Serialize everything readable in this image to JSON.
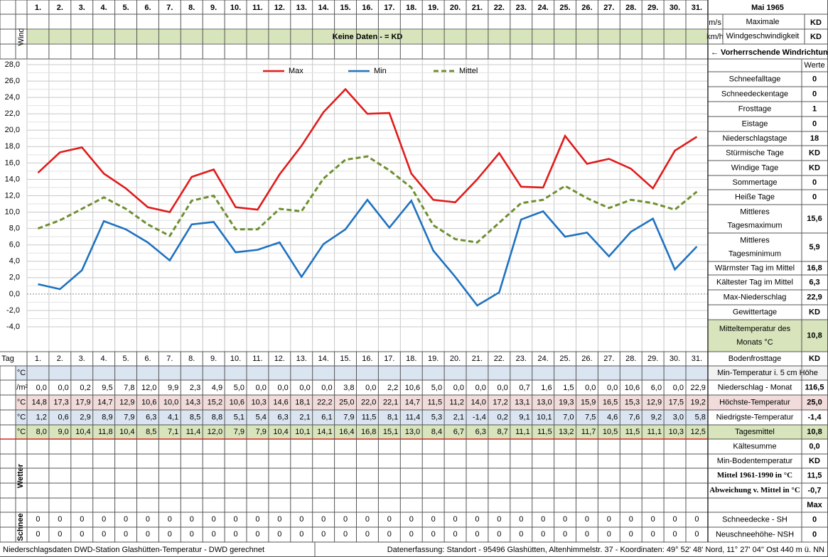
{
  "title": "Mai 1965",
  "wind": {
    "label": "Wind",
    "note": "Keine Daten -  = KD",
    "units": [
      "m/s",
      "km/h"
    ],
    "max_label": [
      "Maximale",
      "Windgeschwindigkeit"
    ],
    "max_values": [
      "KD",
      "KD"
    ],
    "direction": "← Vorherrschende Windrichtung"
  },
  "chart_data": {
    "type": "line",
    "categories": [
      "1.",
      "2.",
      "3.",
      "4.",
      "5.",
      "6.",
      "7.",
      "8.",
      "9.",
      "10.",
      "11.",
      "12.",
      "13.",
      "14.",
      "15.",
      "16.",
      "17.",
      "18.",
      "19.",
      "20.",
      "21.",
      "22.",
      "23.",
      "24.",
      "25.",
      "26.",
      "27.",
      "28.",
      "29.",
      "30.",
      "31."
    ],
    "ylim": [
      -4,
      28
    ],
    "yticks": [
      {
        "value": 28,
        "label": "28,0"
      },
      {
        "value": 26,
        "label": "26,0"
      },
      {
        "value": 24,
        "label": "24,0"
      },
      {
        "value": 22,
        "label": "22,0"
      },
      {
        "value": 20,
        "label": "20,0"
      },
      {
        "value": 18,
        "label": "18,0"
      },
      {
        "value": 16,
        "label": "16,0"
      },
      {
        "value": 14,
        "label": "14,0"
      },
      {
        "value": 12,
        "label": "12,0"
      },
      {
        "value": 10,
        "label": "10,0"
      },
      {
        "value": 8,
        "label": "8,0"
      },
      {
        "value": 6,
        "label": "6,0"
      },
      {
        "value": 4,
        "label": "4,0"
      },
      {
        "value": 2,
        "label": "2,0"
      },
      {
        "value": 0,
        "label": "0,0"
      },
      {
        "value": -2,
        "label": "-2,0"
      },
      {
        "value": -4,
        "label": "-4,0"
      }
    ],
    "grid": true,
    "series": [
      {
        "name": "Max",
        "color": "#e01b1b",
        "dash": false,
        "values": [
          14.8,
          17.3,
          17.9,
          14.7,
          12.9,
          10.6,
          10.0,
          14.3,
          15.2,
          10.6,
          10.3,
          14.6,
          18.1,
          22.2,
          25.0,
          22.0,
          22.1,
          14.7,
          11.5,
          11.2,
          14.0,
          17.2,
          13.1,
          13.0,
          19.3,
          15.9,
          16.5,
          15.3,
          12.9,
          17.5,
          19.2
        ],
        "value_labels": [
          "14,8",
          "17,3",
          "17,9",
          "14,7",
          "12,9",
          "10,6",
          "10,0",
          "14,3",
          "15,2",
          "10,6",
          "10,3",
          "14,6",
          "18,1",
          "22,2",
          "25,0",
          "22,0",
          "22,1",
          "14,7",
          "11,5",
          "11,2",
          "14,0",
          "17,2",
          "13,1",
          "13,0",
          "19,3",
          "15,9",
          "16,5",
          "15,3",
          "12,9",
          "17,5",
          "19,2"
        ]
      },
      {
        "name": "Min",
        "color": "#1f72c0",
        "dash": false,
        "values": [
          1.2,
          0.6,
          2.9,
          8.9,
          7.9,
          6.3,
          4.1,
          8.5,
          8.8,
          5.1,
          5.4,
          6.3,
          2.1,
          6.1,
          7.9,
          11.5,
          8.1,
          11.4,
          5.3,
          2.1,
          -1.4,
          0.2,
          9.1,
          10.1,
          7.0,
          7.5,
          4.6,
          7.6,
          9.2,
          3.0,
          5.8
        ],
        "value_labels": [
          "1,2",
          "0,6",
          "2,9",
          "8,9",
          "7,9",
          "6,3",
          "4,1",
          "8,5",
          "8,8",
          "5,1",
          "5,4",
          "6,3",
          "2,1",
          "6,1",
          "7,9",
          "11,5",
          "8,1",
          "11,4",
          "5,3",
          "2,1",
          "-1,4",
          "0,2",
          "9,1",
          "10,1",
          "7,0",
          "7,5",
          "4,6",
          "7,6",
          "9,2",
          "3,0",
          "5,8"
        ]
      },
      {
        "name": "Mittel",
        "color": "#6f8f30",
        "dash": true,
        "values": [
          8.0,
          9.0,
          10.4,
          11.8,
          10.4,
          8.5,
          7.1,
          11.4,
          12.0,
          7.9,
          7.9,
          10.4,
          10.1,
          14.1,
          16.4,
          16.8,
          15.1,
          13.0,
          8.4,
          6.7,
          6.3,
          8.7,
          11.1,
          11.5,
          13.2,
          11.7,
          10.5,
          11.5,
          11.1,
          10.3,
          12.5
        ],
        "value_labels": [
          "8,0",
          "9,0",
          "10,4",
          "11,8",
          "10,4",
          "8,5",
          "7,1",
          "11,4",
          "12,0",
          "7,9",
          "7,9",
          "10,4",
          "10,1",
          "14,1",
          "16,4",
          "16,8",
          "15,1",
          "13,0",
          "8,4",
          "6,7",
          "6,3",
          "8,7",
          "11,1",
          "11,5",
          "13,2",
          "11,7",
          "10,5",
          "11,5",
          "11,1",
          "10,3",
          "12,5"
        ]
      }
    ]
  },
  "stats": {
    "header": "Werte",
    "rows": [
      {
        "label": [
          "Schneefalltage"
        ],
        "value": "0"
      },
      {
        "label": [
          "Schneedeckentage"
        ],
        "value": "0"
      },
      {
        "label": [
          "Frosttage"
        ],
        "value": "1"
      },
      {
        "label": [
          "Eistage"
        ],
        "value": "0"
      },
      {
        "label": [
          "Niederschlagstage"
        ],
        "value": "18"
      },
      {
        "label": [
          "Stürmische Tage"
        ],
        "value": "KD"
      },
      {
        "label": [
          "Windige Tage"
        ],
        "value": "KD"
      },
      {
        "label": [
          "Sommertage"
        ],
        "value": "0"
      },
      {
        "label": [
          "Heiße Tage"
        ],
        "value": "0"
      },
      {
        "label": [
          "Mittleres",
          "Tagesmaximum"
        ],
        "value": "15,6"
      },
      {
        "label": [
          "Mittleres",
          "Tagesminimum"
        ],
        "value": "5,9"
      },
      {
        "label": [
          "Wärmster Tag im Mittel"
        ],
        "value": "16,8"
      },
      {
        "label": [
          "Kältester Tag im Mittel"
        ],
        "value": "6,3"
      },
      {
        "label": [
          "Max-Niederschlag"
        ],
        "value": "22,9"
      },
      {
        "label": [
          "Gewittertage"
        ],
        "value": "KD"
      },
      {
        "label": [
          "Mitteltemperatur des",
          "Monats °C"
        ],
        "value": "10,8"
      },
      {
        "label": [
          "Bodenfrosttage"
        ],
        "value": "KD"
      }
    ]
  },
  "table": {
    "day_label": "Tag",
    "units": [
      "°C",
      "l/m²",
      "°C",
      "°C",
      "°C"
    ],
    "precip": [
      "0,0",
      "0,0",
      "0,2",
      "9,5",
      "7,8",
      "12,0",
      "9,9",
      "2,3",
      "4,9",
      "5,0",
      "0,0",
      "0,0",
      "0,0",
      "0,0",
      "3,8",
      "0,0",
      "2,2",
      "10,6",
      "5,0",
      "0,0",
      "0,0",
      "0,0",
      "0,7",
      "1,6",
      "1,5",
      "0,0",
      "0,0",
      "10,6",
      "6,0",
      "0,0",
      "22,9"
    ],
    "summary": [
      {
        "label": "Min-Temperatur i. 5 cm Höhe"
      },
      {
        "label": "Niederschlag - Monat",
        "value": "116,5"
      },
      {
        "label": "Höchste-Temperatur",
        "value": "25,0"
      },
      {
        "label": "Niedrigste-Temperatur",
        "value": "-1,4"
      },
      {
        "label": "Tagesmittel",
        "value": "10,8"
      },
      {
        "label": "Kältesumme",
        "value": "0,0"
      },
      {
        "label": "Min-Bodentemperatur",
        "value": "KD"
      },
      {
        "label": "Mittel 1961-1990 in °C",
        "value": "11,5"
      },
      {
        "label": "Abweichung v. Mittel in °C",
        "value": "-0,7"
      },
      {
        "value": "Max"
      },
      {
        "label": "Schneedecke -  SH",
        "value": "0"
      },
      {
        "label": "Neuschneehöhe- NSH",
        "value": "0"
      }
    ]
  },
  "weather_label": "Wetter",
  "snow": {
    "label": "Schnee",
    "rows": [
      [
        "0",
        "0",
        "0",
        "0",
        "0",
        "0",
        "0",
        "0",
        "0",
        "0",
        "0",
        "0",
        "0",
        "0",
        "0",
        "0",
        "0",
        "0",
        "0",
        "0",
        "0",
        "0",
        "0",
        "0",
        "0",
        "0",
        "0",
        "0",
        "0",
        "0",
        "0"
      ],
      [
        "0",
        "0",
        "0",
        "0",
        "0",
        "0",
        "0",
        "0",
        "0",
        "0",
        "0",
        "0",
        "0",
        "0",
        "0",
        "0",
        "0",
        "0",
        "0",
        "0",
        "0",
        "0",
        "0",
        "0",
        "0",
        "0",
        "0",
        "0",
        "0",
        "0",
        "0"
      ]
    ]
  },
  "footer": {
    "left": "Niederschlagsdaten DWD-Station Glashütten-Temperatur -  DWD gerechnet",
    "right": "Datenerfassung: Standort -  95496 Glashütten, Altenhimmelstr. 37 - Koordinaten: 49° 52' 48' Nord,  11° 27' 04'' Ost  440 m ü. NN"
  }
}
